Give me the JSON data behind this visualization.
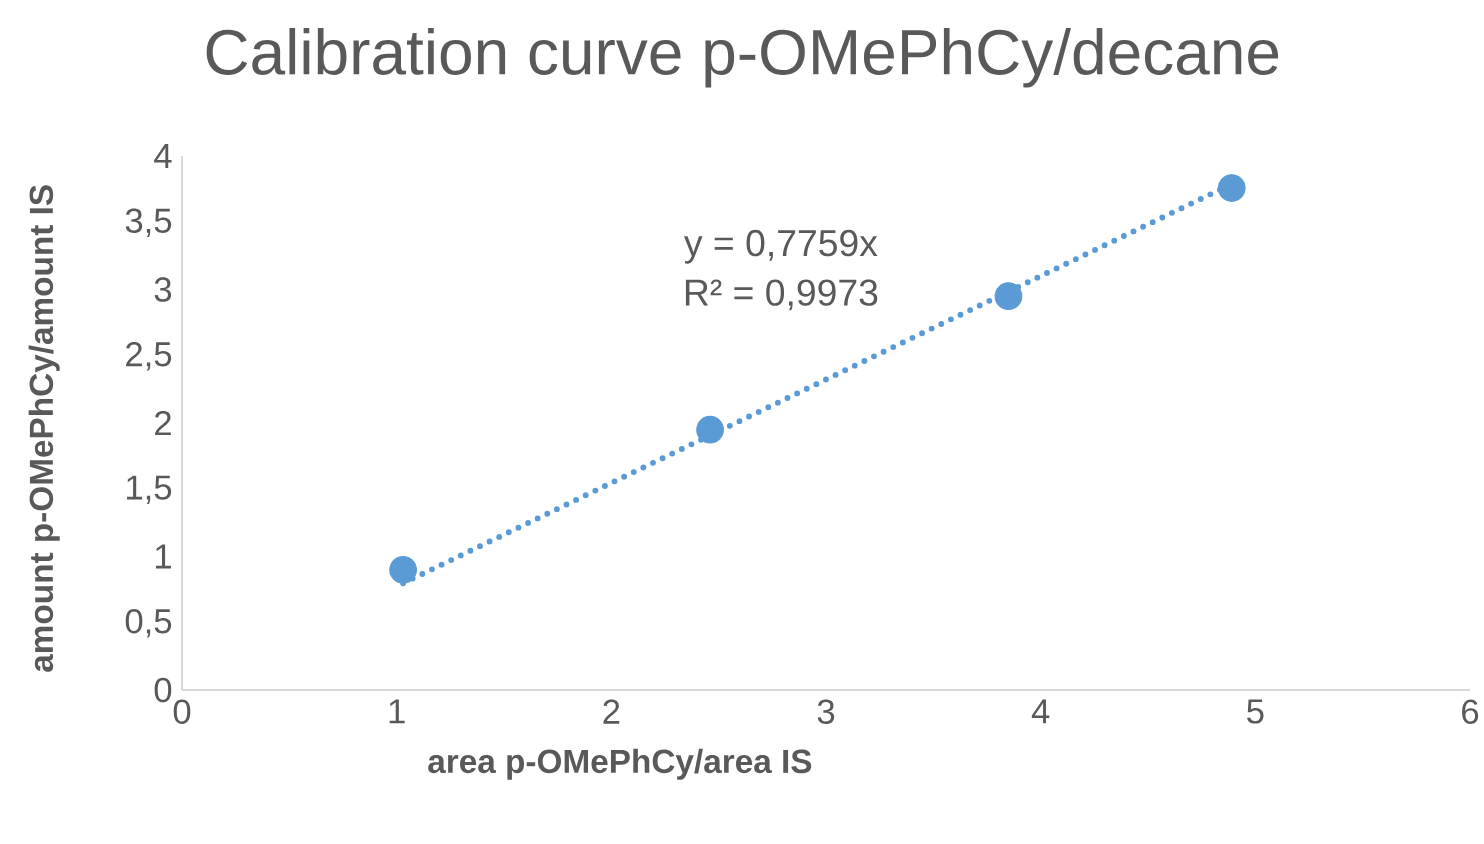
{
  "chart_data": {
    "type": "scatter",
    "title": "Calibration curve p-OMePhCy/decane",
    "xlabel": "area p-OMePhCy/area IS",
    "ylabel": "amount p-OMePhCy/amount IS",
    "series": [
      {
        "color": "#5b9bd5",
        "marker": "circle",
        "x": [
          1.03,
          2.46,
          3.85,
          4.89
        ],
        "values": [
          0.9,
          1.95,
          2.95,
          3.76
        ]
      },
      {
        "type": "line",
        "color": "#5b9bd5",
        "line_style": "dotted",
        "marker": "none",
        "x": [
          1.03,
          4.89
        ],
        "values": [
          0.8,
          3.79
        ]
      }
    ],
    "annotations": [
      "y = 0,7759x",
      "R² = 0,9973"
    ],
    "xlim": [
      0,
      6
    ],
    "xticks": [
      0,
      1,
      2,
      3,
      4,
      5,
      6
    ],
    "ylim": [
      0,
      4
    ],
    "yticks": [
      0,
      {
        "value": 0.5,
        "label": "0,5"
      },
      1,
      {
        "value": 1.5,
        "label": "1,5"
      },
      2,
      {
        "value": 2.5,
        "label": "2,5"
      },
      3,
      {
        "value": 3.5,
        "label": "3,5"
      },
      4
    ],
    "grid": false,
    "legend": false
  }
}
